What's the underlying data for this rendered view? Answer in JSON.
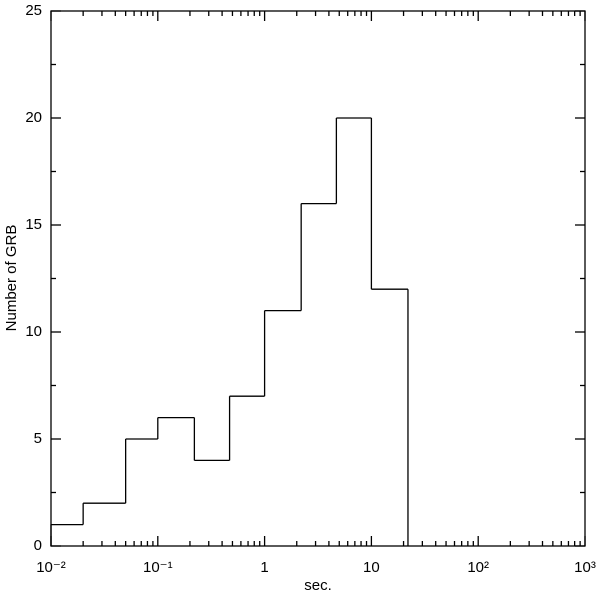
{
  "chart_data": {
    "type": "histogram",
    "x_label": "sec.",
    "y_label": "Number of GRB",
    "bins": [
      0.01,
      0.02,
      0.05,
      0.1,
      0.22,
      0.47,
      1,
      2.2,
      4.7,
      10,
      22
    ],
    "values": [
      1,
      2,
      5,
      6,
      4,
      7,
      11,
      16,
      20,
      12
    ],
    "color": "#000000",
    "xscale": "log",
    "xlim": [
      0.01,
      1000
    ],
    "xticks": [
      {
        "value": 0.01,
        "label": "10⁻²"
      },
      {
        "value": 0.1,
        "label": "10⁻¹"
      },
      1,
      10,
      {
        "value": 100,
        "label": "10²"
      },
      {
        "value": 1000,
        "label": "10³"
      }
    ],
    "ylim": [
      0,
      25
    ],
    "yticks": [
      0,
      5,
      10,
      15,
      20,
      25
    ]
  }
}
